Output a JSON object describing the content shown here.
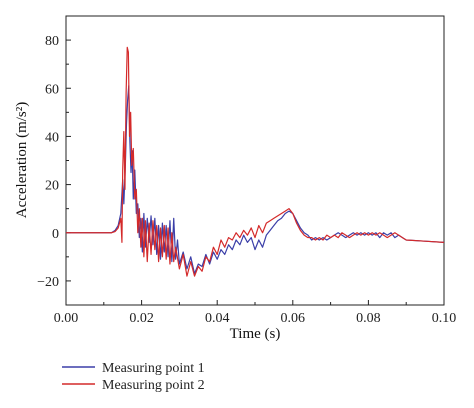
{
  "chart_data": {
    "type": "line",
    "title": "",
    "xlabel": "Time (s)",
    "ylabel": "Acceleration (m/s²)",
    "xlim": [
      0.0,
      0.1
    ],
    "ylim": [
      -30,
      90
    ],
    "xticks": [
      "0.00",
      "0.02",
      "0.04",
      "0.06",
      "0.08",
      "0.10"
    ],
    "yticks": [
      "−20",
      "0",
      "20",
      "40",
      "60",
      "80"
    ],
    "grid": false,
    "legend_position": "below-left",
    "series": [
      {
        "name": "Measuring point 1",
        "color": "#3b3fa8",
        "points": [
          [
            0.0,
            0.0
          ],
          [
            0.012,
            0.0
          ],
          [
            0.013,
            1.0
          ],
          [
            0.0138,
            3.0
          ],
          [
            0.0145,
            8.0
          ],
          [
            0.015,
            22.0
          ],
          [
            0.0153,
            12.0
          ],
          [
            0.0157,
            28.0
          ],
          [
            0.016,
            45.0
          ],
          [
            0.0163,
            55.0
          ],
          [
            0.0166,
            61.0
          ],
          [
            0.0169,
            38.0
          ],
          [
            0.0172,
            25.0
          ],
          [
            0.0175,
            34.0
          ],
          [
            0.0178,
            14.0
          ],
          [
            0.0182,
            26.0
          ],
          [
            0.0186,
            8.0
          ],
          [
            0.019,
            12.0
          ],
          [
            0.0194,
            -2.0
          ],
          [
            0.0198,
            6.0
          ],
          [
            0.0202,
            -8.0
          ],
          [
            0.0206,
            8.0
          ],
          [
            0.021,
            -6.0
          ],
          [
            0.0215,
            6.0
          ],
          [
            0.022,
            -4.0
          ],
          [
            0.0225,
            7.0
          ],
          [
            0.023,
            -5.0
          ],
          [
            0.0235,
            6.0
          ],
          [
            0.024,
            -9.0
          ],
          [
            0.0245,
            3.0
          ],
          [
            0.025,
            -11.0
          ],
          [
            0.0255,
            4.0
          ],
          [
            0.026,
            -8.0
          ],
          [
            0.0265,
            3.0
          ],
          [
            0.027,
            -10.0
          ],
          [
            0.0275,
            5.0
          ],
          [
            0.028,
            -12.0
          ],
          [
            0.0285,
            6.0
          ],
          [
            0.029,
            -11.0
          ],
          [
            0.0295,
            -3.0
          ],
          [
            0.03,
            -13.0
          ],
          [
            0.031,
            -8.0
          ],
          [
            0.032,
            -15.0
          ],
          [
            0.033,
            -10.0
          ],
          [
            0.034,
            -17.0
          ],
          [
            0.035,
            -13.0
          ],
          [
            0.036,
            -14.0
          ],
          [
            0.037,
            -9.0
          ],
          [
            0.038,
            -13.0
          ],
          [
            0.039,
            -8.0
          ],
          [
            0.04,
            -11.0
          ],
          [
            0.041,
            -7.0
          ],
          [
            0.042,
            -9.0
          ],
          [
            0.043,
            -5.0
          ],
          [
            0.044,
            -7.0
          ],
          [
            0.045,
            -3.0
          ],
          [
            0.046,
            -5.0
          ],
          [
            0.047,
            -1.0
          ],
          [
            0.048,
            -4.0
          ],
          [
            0.049,
            -2.0
          ],
          [
            0.05,
            -7.0
          ],
          [
            0.051,
            -3.0
          ],
          [
            0.052,
            -6.0
          ],
          [
            0.053,
            -1.0
          ],
          [
            0.054,
            1.0
          ],
          [
            0.055,
            3.0
          ],
          [
            0.056,
            5.0
          ],
          [
            0.057,
            6.0
          ],
          [
            0.058,
            8.0
          ],
          [
            0.059,
            9.0
          ],
          [
            0.06,
            8.0
          ],
          [
            0.061,
            5.0
          ],
          [
            0.062,
            2.0
          ],
          [
            0.063,
            0.0
          ],
          [
            0.064,
            -1.0
          ],
          [
            0.065,
            -3.0
          ],
          [
            0.066,
            -2.0
          ],
          [
            0.067,
            -3.0
          ],
          [
            0.068,
            -2.0
          ],
          [
            0.069,
            -3.0
          ],
          [
            0.07,
            -2.0
          ],
          [
            0.071,
            -1.0
          ],
          [
            0.072,
            0.0
          ],
          [
            0.073,
            -1.0
          ],
          [
            0.074,
            -2.0
          ],
          [
            0.075,
            -1.0
          ],
          [
            0.076,
            0.0
          ],
          [
            0.077,
            -1.0
          ],
          [
            0.078,
            0.0
          ],
          [
            0.079,
            -1.0
          ],
          [
            0.08,
            0.0
          ],
          [
            0.081,
            -1.0
          ],
          [
            0.082,
            0.0
          ],
          [
            0.083,
            -2.0
          ],
          [
            0.084,
            0.0
          ],
          [
            0.085,
            -1.0
          ],
          [
            0.086,
            0.0
          ],
          [
            0.087,
            -2.0
          ],
          [
            0.088,
            -1.0
          ],
          [
            0.089,
            -2.0
          ],
          [
            0.09,
            -3.0
          ],
          [
            0.095,
            -3.5
          ],
          [
            0.1,
            -4.0
          ]
        ]
      },
      {
        "name": "Measuring point 2",
        "color": "#d42a2a",
        "points": [
          [
            0.0,
            0.0
          ],
          [
            0.012,
            0.0
          ],
          [
            0.013,
            0.5
          ],
          [
            0.0138,
            2.0
          ],
          [
            0.0145,
            6.0
          ],
          [
            0.0148,
            -4.0
          ],
          [
            0.015,
            26.0
          ],
          [
            0.0153,
            42.0
          ],
          [
            0.0156,
            18.0
          ],
          [
            0.0159,
            58.0
          ],
          [
            0.0162,
            77.0
          ],
          [
            0.0165,
            75.0
          ],
          [
            0.0168,
            40.0
          ],
          [
            0.0171,
            50.0
          ],
          [
            0.0174,
            28.0
          ],
          [
            0.0178,
            35.0
          ],
          [
            0.0182,
            14.0
          ],
          [
            0.0186,
            18.0
          ],
          [
            0.019,
            0.0
          ],
          [
            0.0194,
            10.0
          ],
          [
            0.0198,
            -6.0
          ],
          [
            0.0202,
            6.0
          ],
          [
            0.0206,
            -10.0
          ],
          [
            0.021,
            5.0
          ],
          [
            0.0215,
            -12.0
          ],
          [
            0.022,
            4.0
          ],
          [
            0.0225,
            -9.0
          ],
          [
            0.023,
            5.0
          ],
          [
            0.0235,
            -7.0
          ],
          [
            0.024,
            3.0
          ],
          [
            0.0245,
            -12.0
          ],
          [
            0.025,
            2.0
          ],
          [
            0.0255,
            -10.0
          ],
          [
            0.026,
            3.0
          ],
          [
            0.0265,
            -11.0
          ],
          [
            0.027,
            2.0
          ],
          [
            0.0275,
            -13.0
          ],
          [
            0.028,
            0.0
          ],
          [
            0.0285,
            -12.0
          ],
          [
            0.029,
            -6.0
          ],
          [
            0.03,
            -15.0
          ],
          [
            0.031,
            -9.0
          ],
          [
            0.032,
            -18.0
          ],
          [
            0.033,
            -12.0
          ],
          [
            0.034,
            -18.0
          ],
          [
            0.035,
            -14.0
          ],
          [
            0.036,
            -16.0
          ],
          [
            0.037,
            -10.0
          ],
          [
            0.038,
            -12.0
          ],
          [
            0.039,
            -6.0
          ],
          [
            0.04,
            -9.0
          ],
          [
            0.041,
            -3.0
          ],
          [
            0.042,
            -6.0
          ],
          [
            0.043,
            -2.0
          ],
          [
            0.044,
            -3.0
          ],
          [
            0.045,
            0.0
          ],
          [
            0.046,
            -2.0
          ],
          [
            0.047,
            1.0
          ],
          [
            0.048,
            -1.0
          ],
          [
            0.049,
            2.0
          ],
          [
            0.05,
            -2.0
          ],
          [
            0.051,
            3.0
          ],
          [
            0.052,
            0.0
          ],
          [
            0.053,
            4.0
          ],
          [
            0.054,
            5.0
          ],
          [
            0.055,
            6.0
          ],
          [
            0.056,
            7.0
          ],
          [
            0.057,
            8.0
          ],
          [
            0.058,
            9.0
          ],
          [
            0.059,
            10.0
          ],
          [
            0.06,
            8.0
          ],
          [
            0.061,
            4.0
          ],
          [
            0.062,
            1.0
          ],
          [
            0.063,
            -1.0
          ],
          [
            0.064,
            -2.0
          ],
          [
            0.065,
            -2.0
          ],
          [
            0.066,
            -3.0
          ],
          [
            0.067,
            -2.0
          ],
          [
            0.068,
            -3.0
          ],
          [
            0.069,
            -1.0
          ],
          [
            0.07,
            -2.0
          ],
          [
            0.071,
            -1.0
          ],
          [
            0.072,
            -2.0
          ],
          [
            0.073,
            0.0
          ],
          [
            0.074,
            -1.0
          ],
          [
            0.075,
            -2.0
          ],
          [
            0.076,
            -1.0
          ],
          [
            0.077,
            0.0
          ],
          [
            0.078,
            -1.0
          ],
          [
            0.079,
            0.0
          ],
          [
            0.08,
            -1.0
          ],
          [
            0.081,
            0.0
          ],
          [
            0.082,
            -1.0
          ],
          [
            0.083,
            0.0
          ],
          [
            0.084,
            -1.0
          ],
          [
            0.085,
            -2.0
          ],
          [
            0.086,
            -1.0
          ],
          [
            0.087,
            0.0
          ],
          [
            0.088,
            -1.0
          ],
          [
            0.089,
            -2.0
          ],
          [
            0.09,
            -3.0
          ],
          [
            0.095,
            -3.5
          ],
          [
            0.1,
            -4.0
          ]
        ]
      }
    ]
  }
}
